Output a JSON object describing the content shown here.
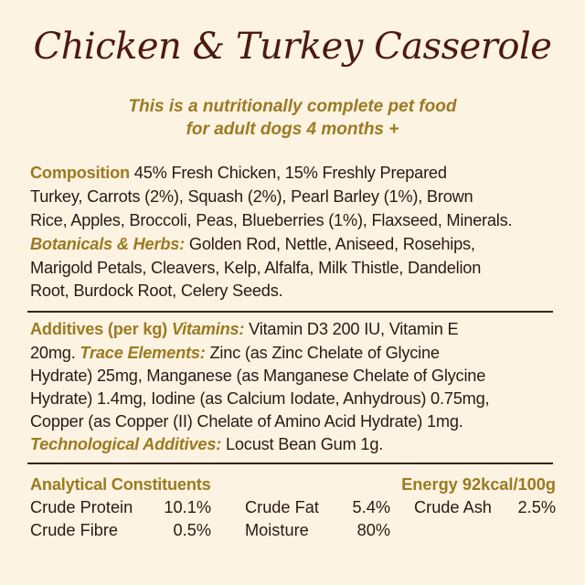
{
  "title": "Chicken & Turkey Casserole",
  "subtitle": [
    "This is a nutritionally complete pet food",
    "for adult dogs 4 months +"
  ],
  "composition": {
    "label": "Composition",
    "lines": [
      "45% Fresh Chicken, 15% Freshly Prepared",
      "Turkey, Carrots (2%), Squash (2%), Pearl Barley (1%), Brown",
      "Rice, Apples, Broccoli, Peas, Blueberries (1%), Flaxseed, Minerals."
    ],
    "botanicals_label": "Botanicals & Herbs:",
    "botanicals_lines": [
      "Golden Rod, Nettle, Aniseed, Rosehips,",
      "Marigold Petals, Cleavers, Kelp, Alfalfa, Milk Thistle, Dandelion",
      "Root, Burdock Root, Celery Seeds."
    ]
  },
  "additives": {
    "label": "Additives (per kg)",
    "vitamins_label": "Vitamins:",
    "l1": "Vitamin D3 200 IU, Vitamin E",
    "l2a": "20mg.",
    "trace_label": "Trace Elements:",
    "l2b": "Zinc (as Zinc Chelate of Glycine",
    "l3": "Hydrate) 25mg, Manganese (as Manganese Chelate of Glycine",
    "l4": "Hydrate) 1.4mg, Iodine (as Calcium Iodate, Anhydrous) 0.75mg,",
    "l5": "Copper (as Copper (II) Chelate of Amino Acid Hydrate) 1mg.",
    "tech_label": "Technological Additives:",
    "l6": "Locust Bean Gum 1g."
  },
  "analytical": {
    "label": "Analytical Constituents",
    "energy": "Energy 92kcal/100g",
    "items": [
      {
        "name": "Crude Protein",
        "value": "10.1%"
      },
      {
        "name": "Crude Fat",
        "value": "5.4%"
      },
      {
        "name": "Crude Ash",
        "value": "2.5%"
      },
      {
        "name": "Crude Fibre",
        "value": "0.5%"
      },
      {
        "name": "Moisture",
        "value": "80%"
      }
    ]
  },
  "colors": {
    "background": "#fdf3e2",
    "title": "#4d1a10",
    "accent": "#9b7a22",
    "text": "#2b1a14"
  }
}
